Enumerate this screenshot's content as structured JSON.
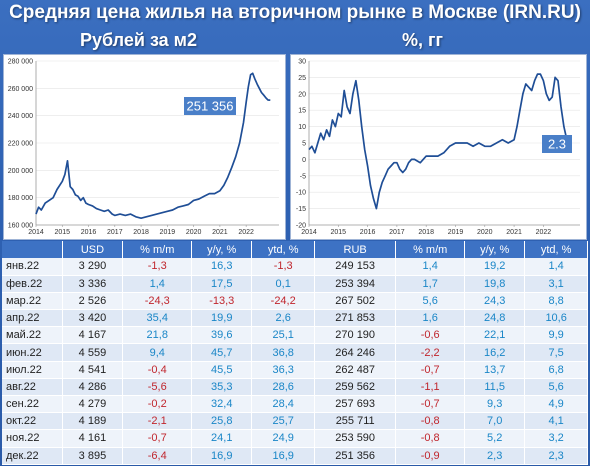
{
  "title": "Средняя цена жилья на вторичном рынке в Москве (IRN.RU)",
  "left_subtitle": "Рублей за м2",
  "right_subtitle": "%, гг",
  "colors": {
    "line": "#1f4e96",
    "callout": "#4a7fc8",
    "pos": "#1a86c7",
    "neg": "#c0262d",
    "header": "#3d72c4"
  },
  "chart_data": [
    {
      "type": "line",
      "title": "Рублей за м2",
      "x_ticks": [
        "2014",
        "2015",
        "2016",
        "2017",
        "2018",
        "2019",
        "2020",
        "2021",
        "2022"
      ],
      "y_ticks": [
        "160 000",
        "180 000",
        "200 000",
        "220 000",
        "240 000",
        "260 000",
        "280 000"
      ],
      "ylim": [
        160000,
        280000
      ],
      "xlim": [
        2014.0,
        2023.25
      ],
      "x": [
        2014.0,
        2014.1,
        2014.2,
        2014.35,
        2014.5,
        2014.65,
        2014.8,
        2015.0,
        2015.1,
        2015.2,
        2015.3,
        2015.4,
        2015.5,
        2015.6,
        2015.7,
        2015.8,
        2015.9,
        2016.0,
        2016.15,
        2016.3,
        2016.45,
        2016.6,
        2016.75,
        2016.9,
        2017.0,
        2017.2,
        2017.4,
        2017.6,
        2017.8,
        2018.0,
        2018.2,
        2018.4,
        2018.6,
        2018.8,
        2019.0,
        2019.2,
        2019.4,
        2019.6,
        2019.8,
        2020.0,
        2020.2,
        2020.4,
        2020.6,
        2020.8,
        2021.0,
        2021.15,
        2021.3,
        2021.45,
        2021.6,
        2021.75,
        2021.9,
        2022.0,
        2022.08,
        2022.17,
        2022.25,
        2022.33,
        2022.42,
        2022.5,
        2022.58,
        2022.67,
        2022.75,
        2022.83,
        2022.92
      ],
      "values": [
        168000,
        173000,
        171000,
        176000,
        178000,
        180000,
        186000,
        192000,
        197000,
        207000,
        188000,
        186000,
        182000,
        181000,
        178000,
        180000,
        176000,
        175000,
        174000,
        172000,
        171000,
        170000,
        171000,
        168000,
        167000,
        168000,
        167000,
        168000,
        166000,
        165000,
        166000,
        167000,
        168000,
        169000,
        170000,
        171000,
        173000,
        174000,
        175000,
        178000,
        179000,
        181000,
        183000,
        183000,
        185000,
        189000,
        195000,
        202000,
        210000,
        220000,
        235000,
        250000,
        261000,
        270000,
        271000,
        267000,
        263000,
        260000,
        257000,
        255000,
        253000,
        251500,
        251356
      ],
      "callout": "251 356"
    },
    {
      "type": "line",
      "title": "%, гг",
      "x_ticks": [
        "2014",
        "2015",
        "2016",
        "2017",
        "2018",
        "2019",
        "2020",
        "2021",
        "2022"
      ],
      "y_ticks": [
        "-20",
        "-15",
        "-10",
        "-5",
        "0",
        "5",
        "10",
        "15",
        "20",
        "25",
        "30"
      ],
      "ylim": [
        -20,
        30
      ],
      "xlim": [
        2014.0,
        2023.25
      ],
      "x": [
        2014.0,
        2014.1,
        2014.2,
        2014.3,
        2014.4,
        2014.5,
        2014.6,
        2014.7,
        2014.8,
        2014.9,
        2015.0,
        2015.1,
        2015.2,
        2015.3,
        2015.4,
        2015.5,
        2015.6,
        2015.7,
        2015.8,
        2015.9,
        2016.0,
        2016.1,
        2016.2,
        2016.3,
        2016.4,
        2016.5,
        2016.6,
        2016.7,
        2016.8,
        2016.9,
        2017.0,
        2017.1,
        2017.2,
        2017.3,
        2017.4,
        2017.5,
        2017.6,
        2017.8,
        2018.0,
        2018.2,
        2018.4,
        2018.6,
        2018.8,
        2019.0,
        2019.2,
        2019.4,
        2019.6,
        2019.8,
        2020.0,
        2020.2,
        2020.4,
        2020.6,
        2020.8,
        2021.0,
        2021.1,
        2021.2,
        2021.3,
        2021.4,
        2021.5,
        2021.6,
        2021.7,
        2021.8,
        2021.9,
        2022.0,
        2022.1,
        2022.2,
        2022.3,
        2022.4,
        2022.5,
        2022.6,
        2022.7,
        2022.8,
        2022.9
      ],
      "values": [
        3,
        4,
        2,
        5,
        8,
        6,
        9,
        7,
        12,
        10,
        14,
        13,
        21,
        16,
        14,
        20,
        24,
        18,
        10,
        3,
        -2,
        -8,
        -12,
        -15,
        -10,
        -7,
        -5,
        -3,
        -2,
        -1,
        -1,
        -3,
        -4,
        -3,
        -1,
        0,
        0,
        -1,
        1,
        1,
        1,
        2,
        4,
        5,
        5,
        5,
        4,
        5,
        4,
        4,
        5,
        6,
        5,
        6,
        10,
        15,
        20,
        23,
        22,
        21,
        24,
        26,
        26,
        24,
        20,
        18,
        19,
        25,
        24,
        16,
        10,
        6,
        2.3
      ],
      "callout": "2.3"
    }
  ],
  "table": {
    "headers": [
      "",
      "USD",
      "% m/m",
      "y/y, %",
      "ytd, %",
      "RUB",
      "% m/m",
      "y/y, %",
      "ytd, %"
    ],
    "rows": [
      [
        "янв.22",
        "3 290",
        "-1,3",
        "16,3",
        "-1,3",
        "249 153",
        "1,4",
        "19,2",
        "1,4"
      ],
      [
        "фев.22",
        "3 336",
        "1,4",
        "17,5",
        "0,1",
        "253 394",
        "1,7",
        "19,8",
        "3,1"
      ],
      [
        "мар.22",
        "2 526",
        "-24,3",
        "-13,3",
        "-24,2",
        "267 502",
        "5,6",
        "24,3",
        "8,8"
      ],
      [
        "апр.22",
        "3 420",
        "35,4",
        "19,9",
        "2,6",
        "271 853",
        "1,6",
        "24,8",
        "10,6"
      ],
      [
        "май.22",
        "4 167",
        "21,8",
        "39,6",
        "25,1",
        "270 190",
        "-0,6",
        "22,1",
        "9,9"
      ],
      [
        "июн.22",
        "4 559",
        "9,4",
        "45,7",
        "36,8",
        "264 246",
        "-2,2",
        "16,2",
        "7,5"
      ],
      [
        "июл.22",
        "4 541",
        "-0,4",
        "45,5",
        "36,3",
        "262 487",
        "-0,7",
        "13,7",
        "6,8"
      ],
      [
        "авг.22",
        "4 286",
        "-5,6",
        "35,3",
        "28,6",
        "259 562",
        "-1,1",
        "11,5",
        "5,6"
      ],
      [
        "сен.22",
        "4 279",
        "-0,2",
        "32,4",
        "28,4",
        "257 693",
        "-0,7",
        "9,3",
        "4,9"
      ],
      [
        "окт.22",
        "4 189",
        "-2,1",
        "25,8",
        "25,7",
        "255 711",
        "-0,8",
        "7,0",
        "4,1"
      ],
      [
        "ноя.22",
        "4 161",
        "-0,7",
        "24,1",
        "24,9",
        "253 590",
        "-0,8",
        "5,2",
        "3,2"
      ],
      [
        "дек.22",
        "3 895",
        "-6,4",
        "16,9",
        "16,9",
        "251 356",
        "-0,9",
        "2,3",
        "2,3"
      ]
    ]
  }
}
